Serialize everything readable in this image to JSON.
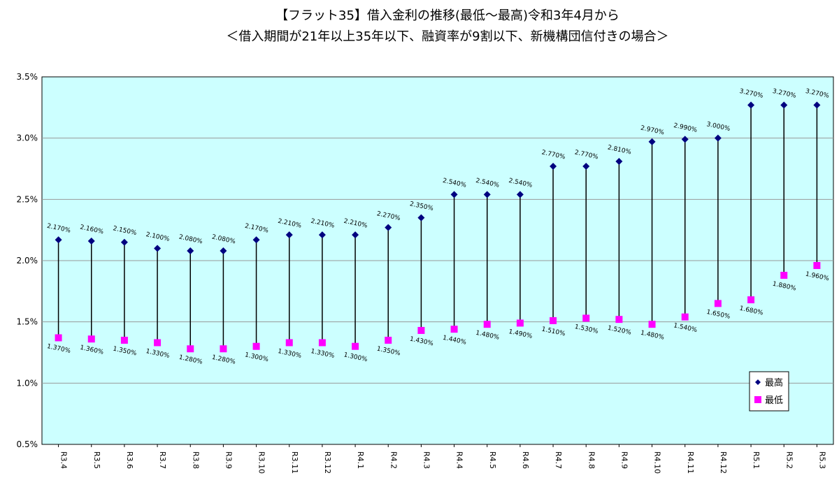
{
  "chart_data": {
    "type": "line",
    "title": "【フラット35】借入金利の推移(最低～最高)令和3年4月から",
    "subtitle": "＜借入期間が21年以上35年以下、融資率が9割以下、新機構団信付きの場合＞",
    "xlabel": "",
    "ylabel": "",
    "ylim": [
      0.5,
      3.5
    ],
    "yticks": [
      "0.5%",
      "1.0%",
      "1.5%",
      "2.0%",
      "2.5%",
      "3.0%",
      "3.5%"
    ],
    "grid": true,
    "legend_position": "bottom-right",
    "categories": [
      "R3.4",
      "R3.5",
      "R3.6",
      "R3.7",
      "R3.8",
      "R3.9",
      "R3.10",
      "R3.11",
      "R3.12",
      "R4.1",
      "R4.2",
      "R4.3",
      "R4.4",
      "R4.5",
      "R4.6",
      "R4.7",
      "R4.8",
      "R4.9",
      "R4.10",
      "R4.11",
      "R4.12",
      "R5.1",
      "R5.2",
      "R5.3"
    ],
    "series": [
      {
        "name": "最高",
        "color": "#000080",
        "marker": "diamond",
        "values": [
          2.17,
          2.16,
          2.15,
          2.1,
          2.08,
          2.08,
          2.17,
          2.21,
          2.21,
          2.21,
          2.27,
          2.35,
          2.54,
          2.54,
          2.54,
          2.77,
          2.77,
          2.81,
          2.97,
          2.99,
          3.0,
          3.27,
          3.27,
          3.27
        ],
        "labels": [
          "2.170%",
          "2.160%",
          "2.150%",
          "2.100%",
          "2.080%",
          "2.080%",
          "2.170%",
          "2.210%",
          "2.210%",
          "2.210%",
          "2.270%",
          "2.350%",
          "2.540%",
          "2.540%",
          "2.540%",
          "2.770%",
          "2.770%",
          "2.810%",
          "2.970%",
          "2.990%",
          "3.000%",
          "3.270%",
          "3.270%",
          "3.270%"
        ]
      },
      {
        "name": "最低",
        "color": "#ff00ff",
        "marker": "square",
        "values": [
          1.37,
          1.36,
          1.35,
          1.33,
          1.28,
          1.28,
          1.3,
          1.33,
          1.33,
          1.3,
          1.35,
          1.43,
          1.44,
          1.48,
          1.49,
          1.51,
          1.53,
          1.52,
          1.48,
          1.54,
          1.65,
          1.68,
          1.88,
          1.96
        ],
        "labels": [
          "1.370%",
          "1.360%",
          "1.350%",
          "1.330%",
          "1.280%",
          "1.280%",
          "1.300%",
          "1.330%",
          "1.330%",
          "1.300%",
          "1.350%",
          "1.430%",
          "1.440%",
          "1.480%",
          "1.490%",
          "1.510%",
          "1.530%",
          "1.520%",
          "1.480%",
          "1.540%",
          "1.650%",
          "1.680%",
          "1.880%",
          "1.960%"
        ]
      }
    ],
    "colors": {
      "plot_background": "#ccffff",
      "grid": "#999999",
      "range_line": "#000000"
    }
  }
}
